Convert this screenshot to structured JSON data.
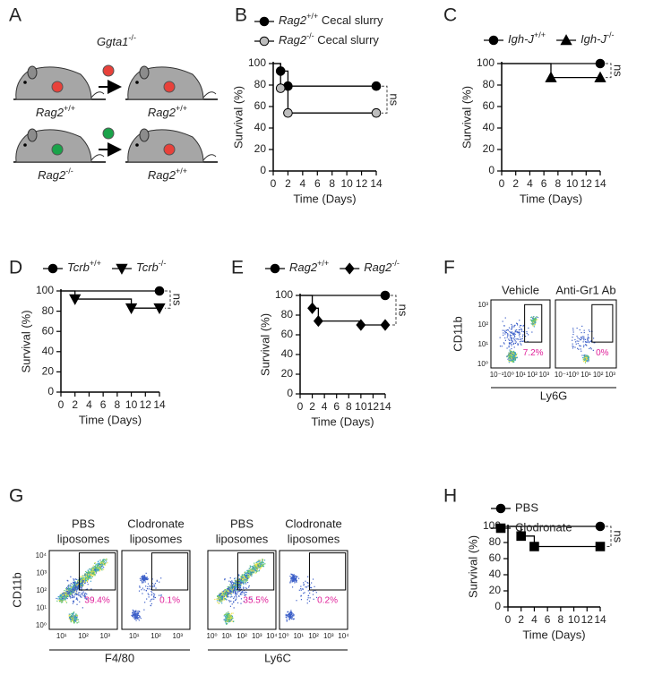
{
  "panel_labels": [
    "A",
    "B",
    "C",
    "D",
    "E",
    "F",
    "G",
    "H"
  ],
  "diagram": {
    "title": "Ggta1-/-",
    "rows": [
      {
        "donor": "Rag2+/+",
        "recipient": "Rag2+/+"
      },
      {
        "donor": "Rag2-/-",
        "recipient": "Rag2+/+"
      }
    ]
  },
  "chart_data": [
    {
      "type": "line",
      "step": true,
      "x_label": "Time (Days)",
      "y_label": "Survival (%)",
      "xlim": [
        0,
        14
      ],
      "xticks": [
        0,
        2,
        4,
        6,
        8,
        10,
        12,
        14
      ],
      "ylim": [
        0,
        100
      ],
      "yticks": [
        0,
        20,
        40,
        60,
        80,
        100
      ],
      "legend": "top",
      "legend_direction": "vertical",
      "annotation": "ns",
      "series": [
        {
          "name": "Rag2+/+ Cecal slurry",
          "color": "#000000",
          "marker": "circle",
          "x": [
            0,
            1,
            2,
            14
          ],
          "values": [
            100,
            93,
            79,
            79
          ]
        },
        {
          "name": "Rag2-/- Cecal slurry",
          "color": "#bdbdbd",
          "marker": "circle",
          "x": [
            0,
            1,
            2,
            14
          ],
          "values": [
            100,
            77,
            54,
            54
          ]
        }
      ]
    },
    {
      "type": "line",
      "step": true,
      "x_label": "Time (Days)",
      "y_label": "Survival (%)",
      "xlim": [
        0,
        14
      ],
      "xticks": [
        0,
        2,
        4,
        6,
        8,
        10,
        12,
        14
      ],
      "ylim": [
        0,
        100
      ],
      "yticks": [
        0,
        20,
        40,
        60,
        80,
        100
      ],
      "legend": "top",
      "legend_direction": "horizontal",
      "annotation": "ns",
      "series": [
        {
          "name": "Igh-J+/+",
          "color": "#000000",
          "marker": "circle",
          "x": [
            0,
            14
          ],
          "values": [
            100,
            100
          ]
        },
        {
          "name": "Igh-J-/-",
          "color": "#000000",
          "marker": "triangle-up",
          "x": [
            0,
            7,
            14
          ],
          "values": [
            100,
            87,
            87
          ]
        }
      ]
    },
    {
      "type": "line",
      "step": true,
      "x_label": "Time (Days)",
      "y_label": "Survival (%)",
      "xlim": [
        0,
        14
      ],
      "xticks": [
        0,
        2,
        4,
        6,
        8,
        10,
        12,
        14
      ],
      "ylim": [
        0,
        100
      ],
      "yticks": [
        0,
        20,
        40,
        60,
        80,
        100
      ],
      "legend": "top",
      "legend_direction": "horizontal",
      "annotation": "ns",
      "series": [
        {
          "name": "Tcrb+/+",
          "color": "#000000",
          "marker": "circle",
          "x": [
            0,
            14
          ],
          "values": [
            100,
            100
          ]
        },
        {
          "name": "Tcrb-/-",
          "color": "#000000",
          "marker": "triangle-down",
          "x": [
            0,
            2,
            10,
            14
          ],
          "values": [
            100,
            92,
            83,
            83
          ]
        }
      ]
    },
    {
      "type": "line",
      "step": true,
      "x_label": "Time (Days)",
      "y_label": "Survival (%)",
      "xlim": [
        0,
        14
      ],
      "xticks": [
        0,
        2,
        4,
        6,
        8,
        10,
        12,
        14
      ],
      "ylim": [
        0,
        100
      ],
      "yticks": [
        0,
        20,
        40,
        60,
        80,
        100
      ],
      "legend": "top",
      "legend_direction": "horizontal",
      "annotation": "ns",
      "series": [
        {
          "name": "Rag2+/+",
          "color": "#000000",
          "marker": "circle",
          "x": [
            0,
            14
          ],
          "values": [
            100,
            100
          ]
        },
        {
          "name": "Rag2-/-",
          "color": "#000000",
          "marker": "diamond",
          "x": [
            0,
            2,
            3,
            10,
            14
          ],
          "values": [
            100,
            87,
            74,
            70,
            70
          ]
        }
      ]
    },
    {
      "type": "line",
      "step": true,
      "x_label": "Time (Days)",
      "y_label": "Survival (%)",
      "xlim": [
        0,
        14
      ],
      "xticks": [
        0,
        2,
        4,
        6,
        8,
        10,
        12,
        14
      ],
      "ylim": [
        0,
        100
      ],
      "yticks": [
        0,
        20,
        40,
        60,
        80,
        100
      ],
      "legend": "top",
      "legend_direction": "vertical",
      "annotation": "ns",
      "series": [
        {
          "name": "PBS",
          "color": "#000000",
          "marker": "circle",
          "x": [
            0,
            14
          ],
          "values": [
            100,
            100
          ]
        },
        {
          "name": "Clodronate",
          "color": "#000000",
          "marker": "square",
          "x": [
            0,
            2,
            4,
            14
          ],
          "values": [
            100,
            88,
            75,
            75
          ]
        }
      ]
    }
  ],
  "flow_f": {
    "y_label": "CD11b",
    "x_label": "Ly6G",
    "y_ticks": [
      "10⁰",
      "10¹",
      "10²",
      "10³"
    ],
    "x_ticks": [
      "10⁻¹",
      "10⁰",
      "10¹",
      "10²",
      "10³"
    ],
    "plots": [
      {
        "title": "Vehicle",
        "gate_percent": "7.2%"
      },
      {
        "title": "Anti-Gr1 Ab",
        "gate_percent": "0%"
      }
    ]
  },
  "flow_g": {
    "y_label": "CD11b",
    "y_ticks": [
      "10⁰",
      "10¹",
      "10²",
      "10³",
      "10⁴"
    ],
    "groups": [
      {
        "x_label": "F4/80",
        "x_ticks": [
          "10¹",
          "10²",
          "10³"
        ],
        "plots": [
          {
            "title_lines": [
              "PBS",
              "liposomes"
            ],
            "gate_percent": "39.4%"
          },
          {
            "title_lines": [
              "Clodronate",
              "liposomes"
            ],
            "gate_percent": "0.1%"
          }
        ]
      },
      {
        "x_label": "Ly6C",
        "x_ticks": [
          "10⁰",
          "10¹",
          "10²",
          "10³",
          "10⁴"
        ],
        "plots": [
          {
            "title_lines": [
              "PBS",
              "liposomes"
            ],
            "gate_percent": "35.5%"
          },
          {
            "title_lines": [
              "Clodronate",
              "liposomes"
            ],
            "gate_percent": "0.2%"
          }
        ]
      }
    ]
  }
}
